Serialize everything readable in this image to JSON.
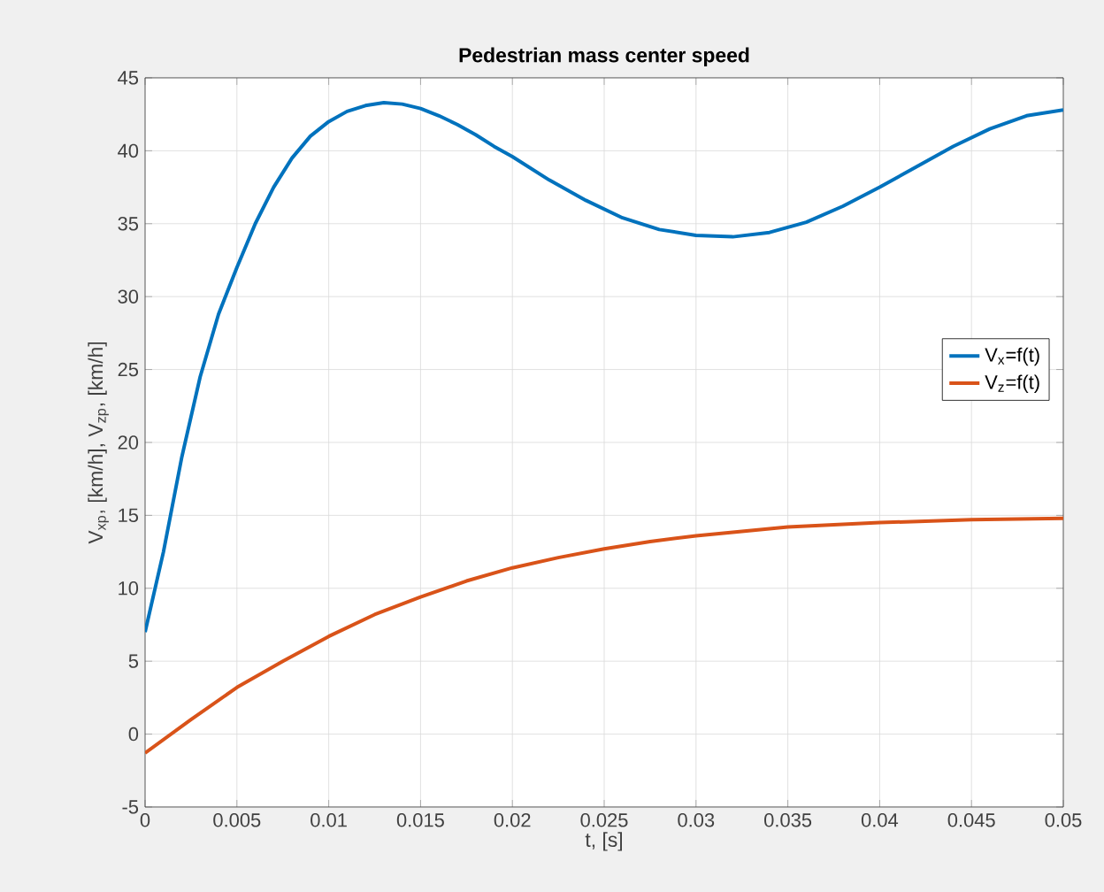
{
  "chart_data": {
    "type": "line",
    "title": "Pedestrian mass center speed",
    "xlabel": "t, [s]",
    "ylabel": "V$_{xp}$, [km/h], V$_{zp}$, [km/h]",
    "xlim": [
      0,
      0.05
    ],
    "ylim": [
      -5,
      45
    ],
    "xticks": [
      0,
      0.005,
      0.01,
      0.015,
      0.02,
      0.025,
      0.03,
      0.035,
      0.04,
      0.045,
      0.05
    ],
    "yticks": [
      -5,
      0,
      5,
      10,
      15,
      20,
      25,
      30,
      35,
      40,
      45
    ],
    "grid": true,
    "legend": "right",
    "marker": "none",
    "line_style": "solid",
    "series": [
      {
        "name": "V$_{x}$=f(t)",
        "color": "#0072bd",
        "x": [
          0,
          0.001,
          0.002,
          0.003,
          0.004,
          0.005,
          0.006,
          0.007,
          0.008,
          0.009,
          0.01,
          0.011,
          0.012,
          0.013,
          0.014,
          0.015,
          0.016,
          0.017,
          0.018,
          0.019,
          0.02,
          0.022,
          0.024,
          0.026,
          0.028,
          0.03,
          0.032,
          0.034,
          0.036,
          0.038,
          0.04,
          0.042,
          0.044,
          0.046,
          0.048,
          0.05
        ],
        "values": [
          7,
          12.5,
          19,
          24.5,
          28.8,
          32,
          35,
          37.5,
          39.5,
          41,
          42,
          42.7,
          43.1,
          43.3,
          43.2,
          42.9,
          42.4,
          41.8,
          41.1,
          40.3,
          39.6,
          38,
          36.6,
          35.4,
          34.6,
          34.2,
          34.1,
          34.4,
          35.1,
          36.2,
          37.5,
          38.9,
          40.3,
          41.5,
          42.4,
          42.8
        ]
      },
      {
        "name": "V$_{z}$=f(t)",
        "color": "#d95319",
        "x": [
          0,
          0.0025,
          0.005,
          0.0075,
          0.01,
          0.0125,
          0.015,
          0.0175,
          0.02,
          0.0225,
          0.025,
          0.0275,
          0.03,
          0.0325,
          0.035,
          0.04,
          0.045,
          0.05
        ],
        "values": [
          -1.3,
          1,
          3.2,
          5,
          6.7,
          8.2,
          9.4,
          10.5,
          11.4,
          12.1,
          12.7,
          13.2,
          13.6,
          13.9,
          14.2,
          14.5,
          14.7,
          14.8
        ]
      }
    ]
  }
}
